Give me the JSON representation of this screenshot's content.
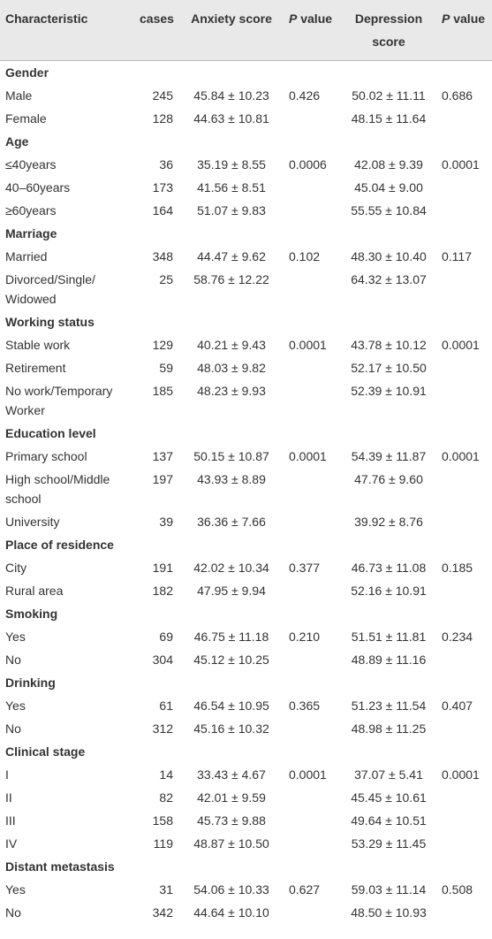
{
  "header": {
    "characteristic": "Characteristic",
    "cases": "cases",
    "anxiety": "Anxiety score",
    "p_anxiety": "P value",
    "depression": "Depression score",
    "p_depression": "P value"
  },
  "groups": [
    {
      "name": "Gender",
      "p_anxiety": "0.426",
      "p_depression": "0.686",
      "rows": [
        {
          "label": "Male",
          "cases": 245,
          "anxiety": "45.84 ± 10.23",
          "depression": "50.02 ± 11.11"
        },
        {
          "label": "Female",
          "cases": 128,
          "anxiety": "44.63 ± 10.81",
          "depression": "48.15 ± 11.64"
        }
      ]
    },
    {
      "name": "Age",
      "p_anxiety": "0.0006",
      "p_depression": "0.0001",
      "rows": [
        {
          "label": "≤40years",
          "cases": 36,
          "anxiety": "35.19 ± 8.55",
          "depression": "42.08 ± 9.39"
        },
        {
          "label": "40–60years",
          "cases": 173,
          "anxiety": "41.56 ± 8.51",
          "depression": "45.04 ± 9.00"
        },
        {
          "label": "≥60years",
          "cases": 164,
          "anxiety": "51.07 ± 9.83",
          "depression": "55.55 ± 10.84"
        }
      ]
    },
    {
      "name": "Marriage",
      "p_anxiety": "0.102",
      "p_depression": "0.117",
      "rows": [
        {
          "label": "Married",
          "cases": 348,
          "anxiety": "44.47 ± 9.62",
          "depression": "48.30 ± 10.40"
        },
        {
          "label": "Divorced/Single/ Widowed",
          "cases": 25,
          "anxiety": "58.76 ± 12.22",
          "depression": "64.32 ± 13.07"
        }
      ]
    },
    {
      "name": "Working status",
      "p_anxiety": "0.0001",
      "p_depression": "0.0001",
      "rows": [
        {
          "label": "Stable work",
          "cases": 129,
          "anxiety": "40.21 ± 9.43",
          "depression": "43.78 ± 10.12"
        },
        {
          "label": "Retirement",
          "cases": 59,
          "anxiety": "48.03 ± 9.82",
          "depression": "52.17 ± 10.50"
        },
        {
          "label": "No work/Temporary Worker",
          "cases": 185,
          "anxiety": "48.23 ± 9.93",
          "depression": "52.39 ± 10.91"
        }
      ]
    },
    {
      "name": "Education level",
      "p_anxiety": "0.0001",
      "p_depression": "0.0001",
      "rows": [
        {
          "label": "Primary school",
          "cases": 137,
          "anxiety": "50.15 ± 10.87",
          "depression": "54.39 ± 11.87"
        },
        {
          "label": "High school/Middle school",
          "cases": 197,
          "anxiety": "43.93 ± 8.89",
          "depression": "47.76 ± 9.60"
        },
        {
          "label": "University",
          "cases": 39,
          "anxiety": "36.36 ± 7.66",
          "depression": "39.92 ± 8.76"
        }
      ]
    },
    {
      "name": "Place of residence",
      "p_anxiety": "0.377",
      "p_depression": "0.185",
      "rows": [
        {
          "label": "City",
          "cases": 191,
          "anxiety": "42.02 ± 10.34",
          "depression": "46.73 ± 11.08"
        },
        {
          "label": "Rural area",
          "cases": 182,
          "anxiety": "47.95 ± 9.94",
          "depression": "52.16 ± 10.91"
        }
      ]
    },
    {
      "name": "Smoking",
      "p_anxiety": "0.210",
      "p_depression": "0.234",
      "rows": [
        {
          "label": "Yes",
          "cases": 69,
          "anxiety": "46.75 ± 11.18",
          "depression": "51.51 ± 11.81"
        },
        {
          "label": "No",
          "cases": 304,
          "anxiety": "45.12 ± 10.25",
          "depression": "48.89 ± 11.16"
        }
      ]
    },
    {
      "name": "Drinking",
      "p_anxiety": "0.365",
      "p_depression": "0.407",
      "rows": [
        {
          "label": "Yes",
          "cases": 61,
          "anxiety": "46.54 ± 10.95",
          "depression": "51.23 ± 11.54"
        },
        {
          "label": "No",
          "cases": 312,
          "anxiety": "45.16 ± 10.32",
          "depression": "48.98 ± 11.25"
        }
      ]
    },
    {
      "name": "Clinical stage",
      "p_anxiety": "0.0001",
      "p_depression": "0.0001",
      "rows": [
        {
          "label": "I",
          "cases": 14,
          "anxiety": "33.43 ± 4.67",
          "depression": "37.07 ± 5.41"
        },
        {
          "label": "II",
          "cases": 82,
          "anxiety": "42.01 ± 9.59",
          "depression": "45.45 ± 10.61"
        },
        {
          "label": "III",
          "cases": 158,
          "anxiety": "45.73 ± 9.88",
          "depression": "49.64 ± 10.51"
        },
        {
          "label": "IV",
          "cases": 119,
          "anxiety": "48.87 ± 10.50",
          "depression": "53.29 ± 11.45"
        }
      ]
    },
    {
      "name": "Distant metastasis",
      "p_anxiety": "0.627",
      "p_depression": "0.508",
      "rows": [
        {
          "label": "Yes",
          "cases": 31,
          "anxiety": "54.06 ± 10.33",
          "depression": "59.03 ± 11.14"
        },
        {
          "label": "No",
          "cases": 342,
          "anxiety": "44.64 ± 10.10",
          "depression": "48.50 ± 10.93"
        }
      ]
    }
  ]
}
